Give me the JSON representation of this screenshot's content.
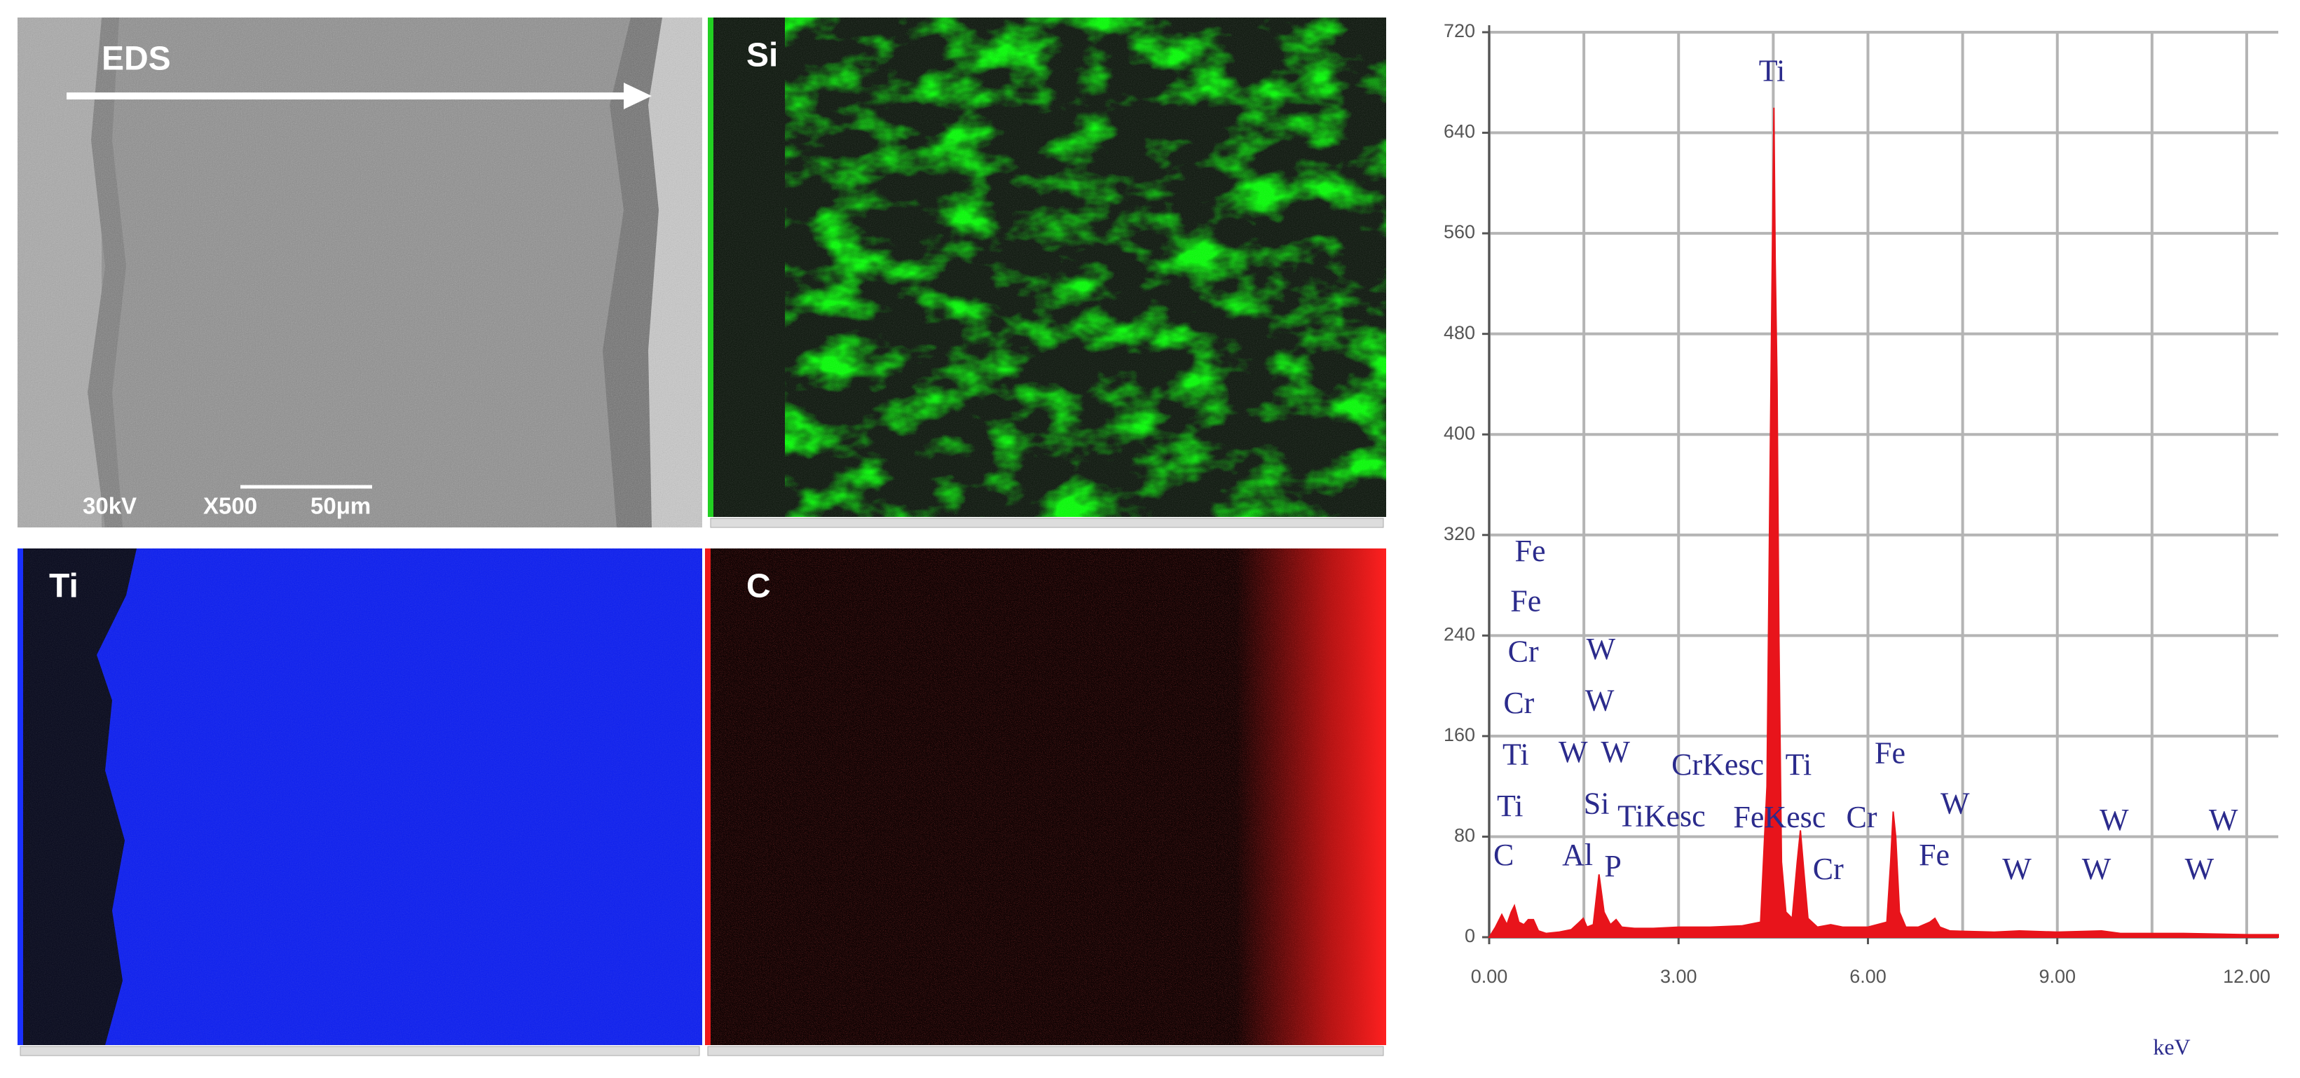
{
  "panels": {
    "sem": {
      "label": "EDS",
      "voltage": "30kV",
      "magnification": "X500",
      "scale": "50μm"
    },
    "maps": [
      "Si",
      "Ti",
      "C"
    ]
  },
  "chart_data": {
    "type": "area",
    "color": "#e8141b",
    "x": [
      0,
      0.1,
      0.2,
      0.28,
      0.35,
      0.4,
      0.47,
      0.55,
      0.62,
      0.7,
      0.78,
      0.9,
      1.1,
      1.3,
      1.43,
      1.49,
      1.55,
      1.65,
      1.74,
      1.82,
      1.92,
      2.01,
      2.1,
      2.3,
      2.6,
      3.0,
      3.5,
      4.0,
      4.3,
      4.4,
      4.45,
      4.48,
      4.51,
      4.53,
      4.56,
      4.59,
      4.63,
      4.7,
      4.8,
      4.88,
      4.93,
      4.98,
      5.05,
      5.2,
      5.41,
      5.6,
      6.0,
      6.3,
      6.36,
      6.4,
      6.44,
      6.5,
      6.6,
      6.8,
      6.98,
      7.06,
      7.14,
      7.3,
      8.0,
      8.4,
      9.0,
      9.7,
      10.0,
      11.0,
      12.0,
      12.5
    ],
    "values": [
      0,
      8,
      18,
      10,
      20,
      25,
      12,
      10,
      14,
      14,
      5,
      3,
      4,
      6,
      12,
      15,
      8,
      10,
      50,
      20,
      10,
      14,
      8,
      7,
      7,
      8,
      8,
      9,
      12,
      120,
      375,
      520,
      660,
      540,
      440,
      235,
      60,
      20,
      15,
      60,
      85,
      55,
      15,
      8,
      10,
      8,
      8,
      12,
      60,
      100,
      80,
      20,
      8,
      8,
      12,
      15,
      8,
      5,
      4,
      5,
      4,
      5,
      3,
      3,
      2,
      2
    ],
    "xlim": [
      0,
      12.5
    ],
    "ylim": [
      0,
      720
    ],
    "xticks": [
      {
        "value": 0,
        "label": "0.00"
      },
      {
        "value": 3,
        "label": "3.00"
      },
      {
        "value": 6,
        "label": "6.00"
      },
      {
        "value": 9,
        "label": "9.00"
      },
      {
        "value": 12,
        "label": "12.00"
      }
    ],
    "xminor": [
      1.5,
      4.5,
      7.5,
      10.5
    ],
    "yticks": [
      0,
      80,
      160,
      240,
      320,
      400,
      480,
      560,
      640,
      720
    ],
    "grid": true,
    "xlabel": "keV",
    "annotations": [
      {
        "text": "Ti",
        "x": 4.48,
        "y": 687
      },
      {
        "text": "Fe",
        "x": 0.65,
        "y": 305
      },
      {
        "text": "Fe",
        "x": 0.58,
        "y": 265
      },
      {
        "text": "Cr",
        "x": 0.54,
        "y": 225
      },
      {
        "text": "W",
        "x": 1.77,
        "y": 227
      },
      {
        "text": "Cr",
        "x": 0.47,
        "y": 184
      },
      {
        "text": "W",
        "x": 1.75,
        "y": 186
      },
      {
        "text": "Ti",
        "x": 0.42,
        "y": 143
      },
      {
        "text": "W",
        "x": 1.33,
        "y": 145
      },
      {
        "text": "W",
        "x": 2.0,
        "y": 145
      },
      {
        "text": "CrKesc",
        "x": 3.62,
        "y": 135
      },
      {
        "text": "Ti",
        "x": 4.9,
        "y": 135
      },
      {
        "text": "Fe",
        "x": 6.35,
        "y": 144
      },
      {
        "text": "Ti",
        "x": 0.33,
        "y": 102
      },
      {
        "text": "Si",
        "x": 1.7,
        "y": 104
      },
      {
        "text": "TiKesc",
        "x": 2.73,
        "y": 94
      },
      {
        "text": "FeKesc",
        "x": 4.6,
        "y": 93
      },
      {
        "text": "Cr",
        "x": 5.9,
        "y": 93
      },
      {
        "text": "W",
        "x": 7.38,
        "y": 104
      },
      {
        "text": "W",
        "x": 9.9,
        "y": 91
      },
      {
        "text": "W",
        "x": 11.63,
        "y": 91
      },
      {
        "text": "C",
        "x": 0.23,
        "y": 63
      },
      {
        "text": "Al",
        "x": 1.4,
        "y": 63
      },
      {
        "text": "P",
        "x": 1.96,
        "y": 54
      },
      {
        "text": "Cr",
        "x": 5.37,
        "y": 52
      },
      {
        "text": "Fe",
        "x": 7.05,
        "y": 63
      },
      {
        "text": "W",
        "x": 8.36,
        "y": 52
      },
      {
        "text": "W",
        "x": 9.62,
        "y": 52
      },
      {
        "text": "W",
        "x": 11.25,
        "y": 52
      }
    ]
  }
}
